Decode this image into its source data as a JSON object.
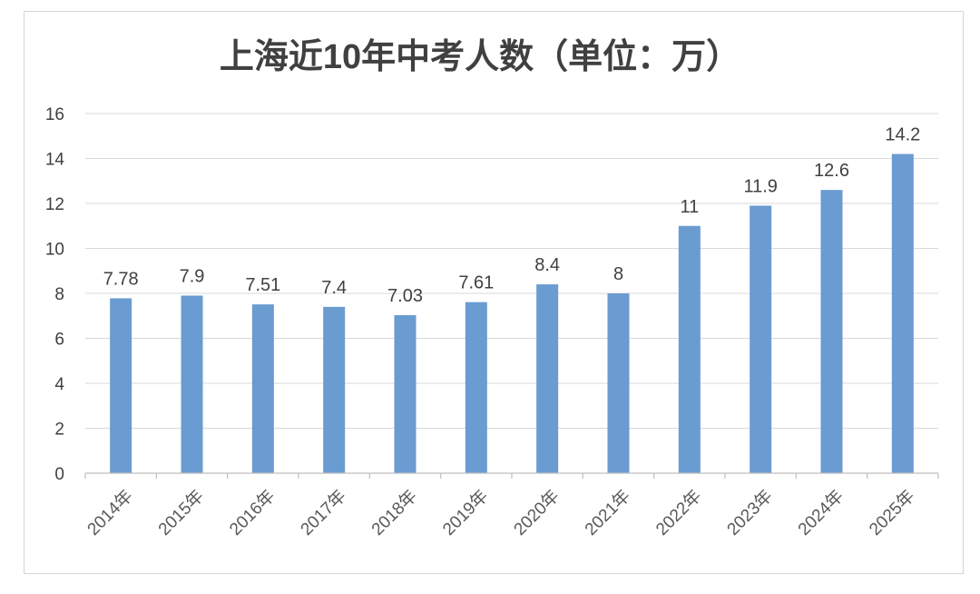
{
  "chart_data": {
    "type": "bar",
    "title": "上海近10年中考人数（单位：万）",
    "categories": [
      "2014年",
      "2015年",
      "2016年",
      "2017年",
      "2018年",
      "2019年",
      "2020年",
      "2021年",
      "2022年",
      "2023年",
      "2024年",
      "2025年"
    ],
    "values": [
      7.78,
      7.9,
      7.51,
      7.4,
      7.03,
      7.61,
      8.4,
      8,
      11,
      11.9,
      12.6,
      14.2
    ],
    "data_labels": [
      "7.78",
      "7.9",
      "7.51",
      "7.4",
      "7.03",
      "7.61",
      "8.4",
      "8",
      "11",
      "11.9",
      "12.6",
      "14.2"
    ],
    "y_ticks": [
      "0",
      "2",
      "4",
      "6",
      "8",
      "10",
      "12",
      "14",
      "16"
    ],
    "ylim": [
      0,
      16
    ],
    "grid": true,
    "legend": "none",
    "bar_color": "#6a9bd1",
    "grid_color": "#d9d9d9",
    "axis_color": "#bfbfbf"
  }
}
